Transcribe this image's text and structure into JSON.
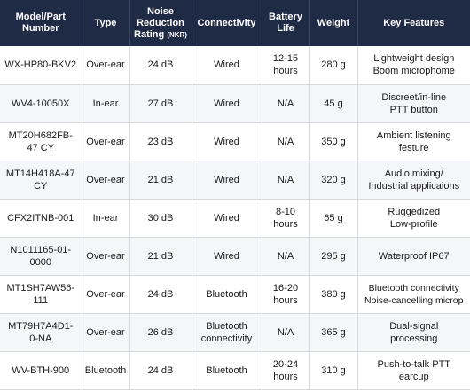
{
  "headers": {
    "model": "Model/Part Number",
    "type": "Type",
    "nrr": "Noise Reduction Rating",
    "nrr_abbr": "(NKR)",
    "connectivity": "Connectivity",
    "battery": "Battery Life",
    "weight": "Weight",
    "features": "Key Features"
  },
  "rows": [
    {
      "model": "WX-HP80-BKV2",
      "type": "Over-ear",
      "nrr": "24 dB",
      "connectivity": "Wired",
      "battery": "12-15\nhours",
      "weight": "280 g",
      "features": "Lightweight design\nBoom microphome"
    },
    {
      "model": "WV4-10050X",
      "type": "In-ear",
      "nrr": "27 dB",
      "connectivity": "Wired",
      "battery": "N/A",
      "weight": "45 g",
      "features": "Discreet/in-line\nPTT button"
    },
    {
      "model": "MT20H682FB-\n47 CY",
      "type": "Over-ear",
      "nrr": "23 dB",
      "connectivity": "Wired",
      "battery": "N/A",
      "weight": "350 g",
      "features": "Ambient listening\nfesture"
    },
    {
      "model": "MT14H418A-47\nCY",
      "type": "Over-ear",
      "nrr": "21 dB",
      "connectivity": "Wired",
      "battery": "N/A",
      "weight": "320 g",
      "features": "Audio mixing/\nIndustrial applicaions"
    },
    {
      "model": "CFX2ITNB-001",
      "type": "In-ear",
      "nrr": "30 dB",
      "connectivity": "Wired",
      "battery": "8-10\nhours",
      "weight": "65 g",
      "features": "Ruggedized\nLow-profile"
    },
    {
      "model": "N1011165-01-\n0000",
      "type": "Over-ear",
      "nrr": "21 dB",
      "connectivity": "Wired",
      "battery": "N/A",
      "weight": "295 g",
      "features": "Waterproof IP67"
    },
    {
      "model": "MT1SH7AW56-\n111",
      "type": "Over-ear",
      "nrr": "24 dB",
      "connectivity": "Bluetooth",
      "battery": "16-20\nhours",
      "weight": "380 g",
      "features": "Bluetooth connectivity\nNoise-cancelling microp"
    },
    {
      "model": "MT79H7A4D1-\n0-NA",
      "type": "Over-ear",
      "nrr": "26 dB",
      "connectivity": "Bluetooth\nconnectivity",
      "battery": "N/A",
      "weight": "365 g",
      "features": "Dual-signal\nprocessing"
    },
    {
      "model": "WV-BTH-900",
      "type": "Bluetooth",
      "nrr": "24 dB",
      "connectivity": "Bluetooth",
      "battery": "20-24\nhours",
      "weight": "310 g",
      "features": "Push-to-talk PTT\nearcup"
    }
  ],
  "colors": {
    "header_bg": "#1f2a44",
    "header_text": "#ffffff",
    "grid": "#d7d9de"
  }
}
